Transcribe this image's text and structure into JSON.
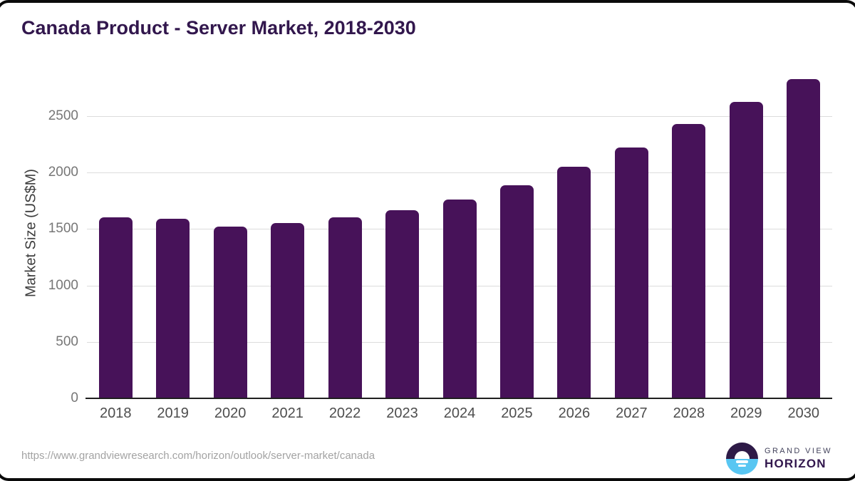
{
  "header": {
    "title": "Canada Product - Server Market, 2018-2030"
  },
  "chart_data": {
    "type": "bar",
    "title": "Canada Product - Server Market, 2018-2030",
    "categories": [
      "2018",
      "2019",
      "2020",
      "2021",
      "2022",
      "2023",
      "2024",
      "2025",
      "2026",
      "2027",
      "2028",
      "2029",
      "2030"
    ],
    "values": [
      1605,
      1590,
      1520,
      1555,
      1605,
      1670,
      1760,
      1890,
      2050,
      2225,
      2430,
      2625,
      2830
    ],
    "xlabel": "",
    "ylabel": "Market Size (US$M)",
    "yticks": [
      0,
      500,
      1000,
      1500,
      2000,
      2500
    ],
    "ylim": [
      0,
      2930
    ],
    "grid": "horizontal",
    "legend": "none",
    "bar_color": "#471259"
  },
  "footer": {
    "source_url": "https://www.grandviewresearch.com/horizon/outlook/server-market/canada",
    "logo": {
      "icon": "sun-over-horizon-icon",
      "brand_top": "GRAND VIEW",
      "brand_bottom": "HORIZON"
    }
  },
  "colors": {
    "title": "#32174d",
    "bar": "#471259",
    "axis_line": "#1f1f1f",
    "gridline": "#dcdcdc",
    "y_tick_label": "#767676",
    "x_tick_label": "#4d4d4d",
    "url_text": "#a3a3a3",
    "logo_purple": "#2e1a47",
    "logo_blue": "#58c6f2"
  }
}
